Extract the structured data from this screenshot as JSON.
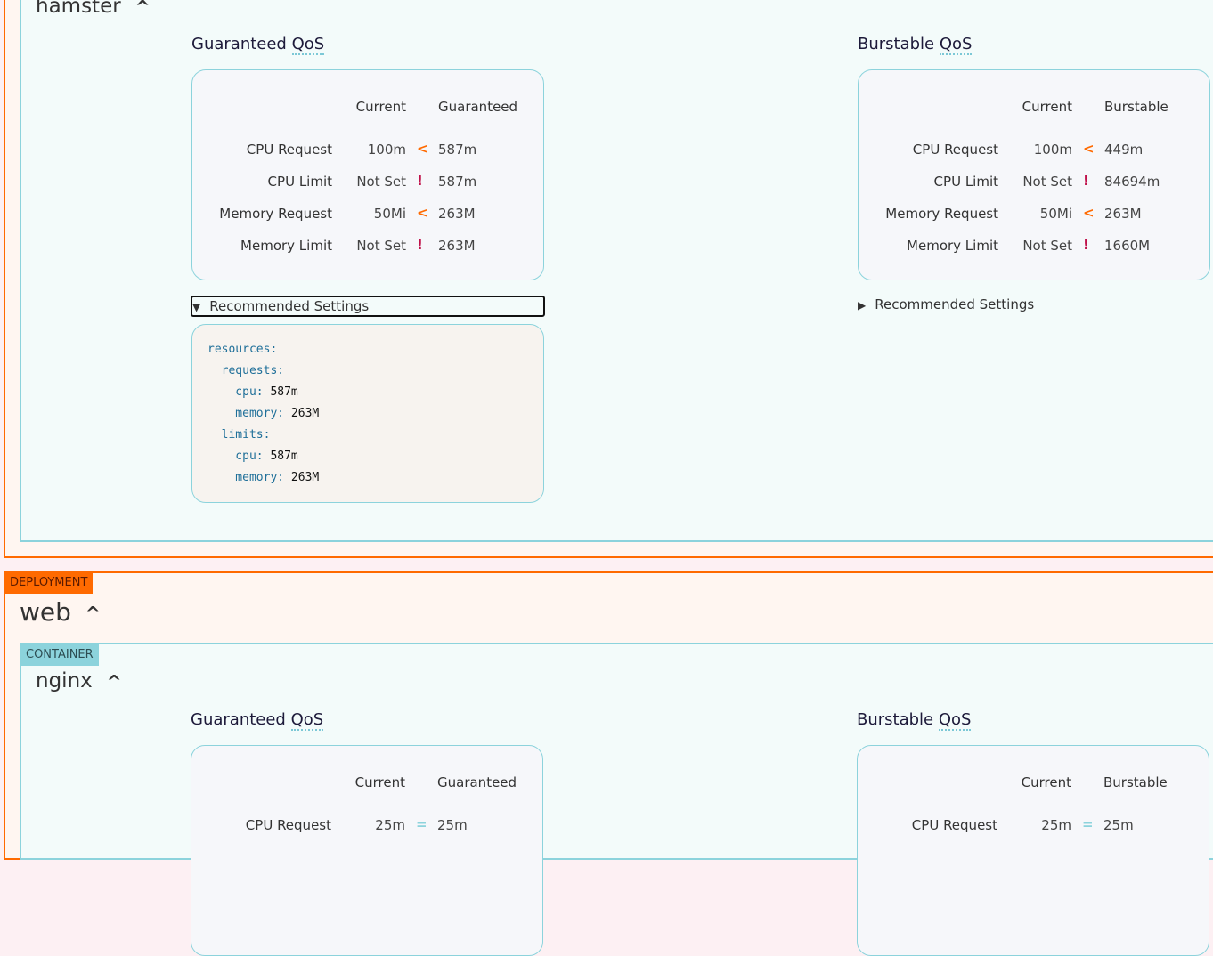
{
  "colors": {
    "deployment": "#ff6a00",
    "container": "#8cd3dc",
    "increase": "#ff6a00",
    "not_set": "#c0114a",
    "equal": "#8cd3dc"
  },
  "sections": [
    {
      "container_name": "hamster",
      "guaranteed": {
        "title": "Guaranteed ",
        "title_abbr": "QoS",
        "col_current": "Current",
        "col_target": "Guaranteed",
        "rows": [
          {
            "label": "CPU Request",
            "current": "100m",
            "indicator": "<",
            "indicator_type": "increase",
            "value": "587m"
          },
          {
            "label": "CPU Limit",
            "current": "Not Set",
            "indicator": "!",
            "indicator_type": "not_set",
            "value": "587m"
          },
          {
            "label": "Memory Request",
            "current": "50Mi",
            "indicator": "<",
            "indicator_type": "increase",
            "value": "263M"
          },
          {
            "label": "Memory Limit",
            "current": "Not Set",
            "indicator": "!",
            "indicator_type": "not_set",
            "value": "263M"
          }
        ],
        "recommended_label": "Recommended Settings",
        "recommended_open": true,
        "code": [
          {
            "key": "resources:",
            "val": ""
          },
          {
            "key": "  requests:",
            "val": ""
          },
          {
            "key": "    cpu:",
            "val": " 587m"
          },
          {
            "key": "    memory:",
            "val": " 263M"
          },
          {
            "key": "  limits:",
            "val": ""
          },
          {
            "key": "    cpu:",
            "val": " 587m"
          },
          {
            "key": "    memory:",
            "val": " 263M"
          }
        ]
      },
      "burstable": {
        "title": "Burstable ",
        "title_abbr": "QoS",
        "col_current": "Current",
        "col_target": "Burstable",
        "rows": [
          {
            "label": "CPU Request",
            "current": "100m",
            "indicator": "<",
            "indicator_type": "increase",
            "value": "449m"
          },
          {
            "label": "CPU Limit",
            "current": "Not Set",
            "indicator": "!",
            "indicator_type": "not_set",
            "value": "84694m"
          },
          {
            "label": "Memory Request",
            "current": "50Mi",
            "indicator": "<",
            "indicator_type": "increase",
            "value": "263M"
          },
          {
            "label": "Memory Limit",
            "current": "Not Set",
            "indicator": "!",
            "indicator_type": "not_set",
            "value": "1660M"
          }
        ],
        "recommended_label": "Recommended Settings",
        "recommended_open": false
      }
    },
    {
      "deployment_tag": "DEPLOYMENT",
      "deployment_name": "web",
      "container_tag": "CONTAINER",
      "container_name": "nginx",
      "guaranteed": {
        "title": "Guaranteed ",
        "title_abbr": "QoS",
        "col_current": "Current",
        "col_target": "Guaranteed",
        "rows": [
          {
            "label": "CPU Request",
            "current": "25m",
            "indicator": "=",
            "indicator_type": "equal",
            "value": "25m"
          }
        ]
      },
      "burstable": {
        "title": "Burstable ",
        "title_abbr": "QoS",
        "col_current": "Current",
        "col_target": "Burstable",
        "rows": [
          {
            "label": "CPU Request",
            "current": "25m",
            "indicator": "=",
            "indicator_type": "equal",
            "value": "25m"
          }
        ]
      }
    }
  ]
}
